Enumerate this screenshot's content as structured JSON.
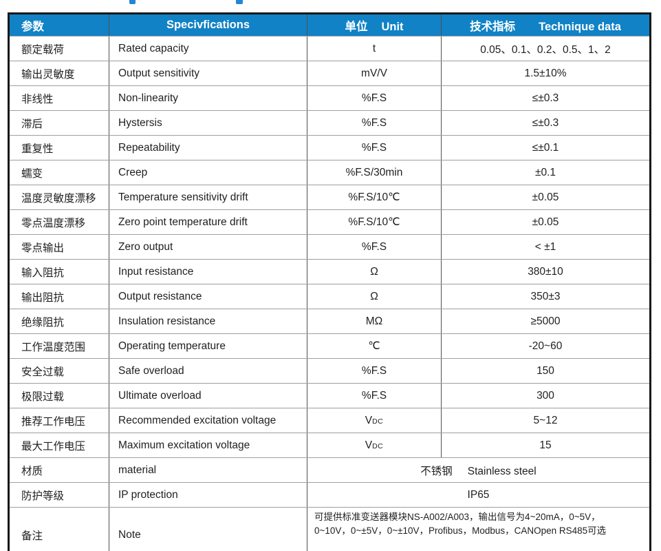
{
  "table": {
    "header_bg": "#1182c6",
    "header": {
      "param": "参数",
      "spec": "Specivfications",
      "unit_cn": "单位",
      "unit_en": "Unit",
      "data_cn": "技术指标",
      "data_en": "Technique data"
    },
    "rows": [
      {
        "param": "额定载荷",
        "spec": "Rated capacity",
        "unit": "t",
        "value": "0.05、0.1、0.2、0.5、1、2"
      },
      {
        "param": "输出灵敏度",
        "spec": "Output sensitivity",
        "unit": "mV/V",
        "value": "1.5±10%"
      },
      {
        "param": "非线性",
        "spec": "Non-linearity",
        "unit": "%F.S",
        "value": "≤±0.3"
      },
      {
        "param": "滞后",
        "spec": "Hystersis",
        "unit": "%F.S",
        "value": "≤±0.3"
      },
      {
        "param": "重复性",
        "spec": "Repeatability",
        "unit": "%F.S",
        "value": "≤±0.1"
      },
      {
        "param": "蠕变",
        "spec": "Creep",
        "unit": "%F.S/30min",
        "value": "±0.1"
      },
      {
        "param": "温度灵敏度漂移",
        "spec": "Temperature sensitivity drift",
        "unit": "%F.S/10℃",
        "value": "±0.05"
      },
      {
        "param": "零点温度漂移",
        "spec": "Zero point temperature drift",
        "unit": "%F.S/10℃",
        "value": "±0.05"
      },
      {
        "param": "零点输出",
        "spec": "Zero output",
        "unit": "%F.S",
        "value": "< ±1"
      },
      {
        "param": "输入阻抗",
        "spec": "Input resistance",
        "unit": "Ω",
        "value": "380±10"
      },
      {
        "param": "输出阻抗",
        "spec": "Output resistance",
        "unit": "Ω",
        "value": "350±3"
      },
      {
        "param": "绝缘阻抗",
        "spec": "Insulation resistance",
        "unit": "MΩ",
        "value": "≥5000"
      },
      {
        "param": "工作温度范围",
        "spec": "Operating temperature",
        "unit": "℃",
        "value": "-20~60"
      },
      {
        "param": "安全过载",
        "spec": "Safe overload",
        "unit": "%F.S",
        "value": "150"
      },
      {
        "param": "极限过载",
        "spec": "Ultimate overload",
        "unit": "%F.S",
        "value": "300"
      },
      {
        "param": "推荐工作电压",
        "spec": "Recommended excitation voltage",
        "unit": "V",
        "unit_sub": "DC",
        "value": "5~12"
      },
      {
        "param": "最大工作电压",
        "spec": "Maximum excitation voltage",
        "unit": "V",
        "unit_sub": "DC",
        "value": "15"
      },
      {
        "param": "材质",
        "spec": "material",
        "merged_cn": "不锈钢",
        "merged_en": "Stainless steel"
      },
      {
        "param": "防护等级",
        "spec": "IP protection",
        "merged_value": "IP65"
      },
      {
        "param": "备注",
        "spec": "Note",
        "note_lines": [
          "可提供标准变送器模块NS-A002/A003，输出信号为4~20mA，0~5V，",
          "0~10V，0~±5V，0~±10V，Profibus，Modbus，CANOpen RS485可选"
        ]
      }
    ]
  }
}
